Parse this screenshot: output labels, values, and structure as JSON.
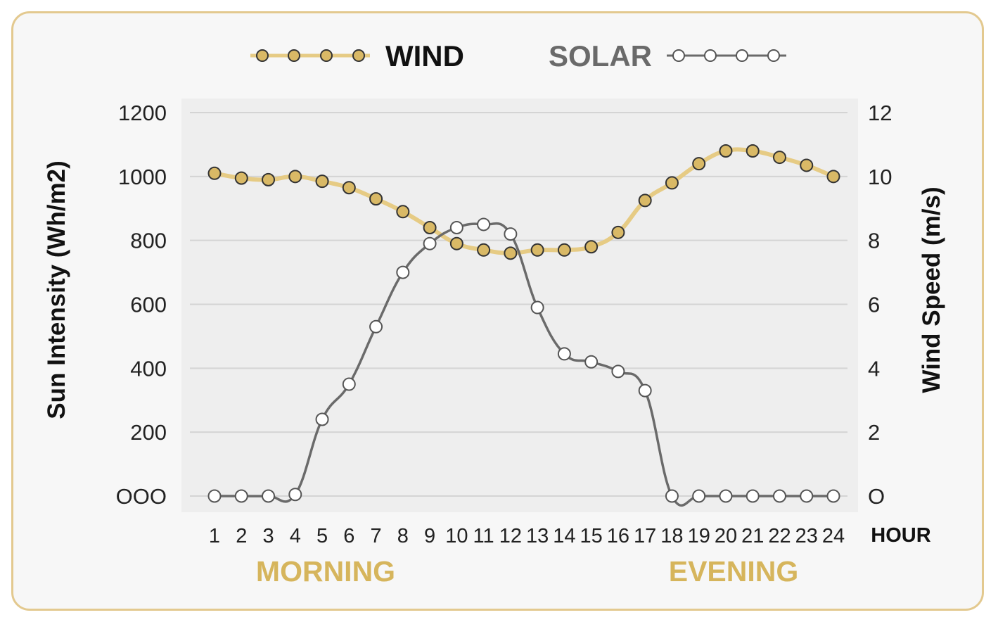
{
  "legend": {
    "wind_label": "WIND",
    "solar_label": "SOLAR"
  },
  "colors": {
    "wind": "#e6cb84",
    "wind_marker": "#d9b966",
    "solar": "#6a6a6a",
    "accent_text": "#d6b55c",
    "border": "#e3c98f"
  },
  "chart_data": {
    "type": "line",
    "x_unit_label": "HOUR",
    "period_labels": [
      "MORNING",
      "EVENING"
    ],
    "x": [
      1,
      2,
      3,
      4,
      5,
      6,
      7,
      8,
      9,
      10,
      11,
      12,
      13,
      14,
      15,
      16,
      17,
      18,
      19,
      20,
      21,
      22,
      23,
      24
    ],
    "x_tick_labels": [
      "1",
      "2",
      "3",
      "4",
      "5",
      "6",
      "7",
      "8",
      "9",
      "10",
      "11",
      "12",
      "13",
      "14",
      "15",
      "16",
      "17",
      "18",
      "19",
      "20",
      "21",
      "22",
      "23",
      "24"
    ],
    "left_axis": {
      "label": "Sun Intensity (Wh/m2)",
      "range": [
        0,
        1200
      ],
      "tick_labels": [
        "OOO",
        "200",
        "400",
        "600",
        "800",
        "1000",
        "1200"
      ],
      "tick_values": [
        0,
        200,
        400,
        600,
        800,
        1000,
        1200
      ]
    },
    "right_axis": {
      "label": "Wind Speed (m/s)",
      "range": [
        0,
        12
      ],
      "tick_labels": [
        "O",
        "2",
        "4",
        "6",
        "8",
        "10",
        "12"
      ],
      "tick_values": [
        0,
        2,
        4,
        6,
        8,
        10,
        12
      ]
    },
    "grid": true,
    "legend_position": "top",
    "series": [
      {
        "name": "WIND",
        "axis": "right",
        "values": [
          10.1,
          9.95,
          9.9,
          10.0,
          9.85,
          9.65,
          9.3,
          8.9,
          8.4,
          7.9,
          7.7,
          7.6,
          7.7,
          7.7,
          7.8,
          8.25,
          9.25,
          9.8,
          10.4,
          10.8,
          10.8,
          10.6,
          10.35,
          10.0
        ]
      },
      {
        "name": "SOLAR",
        "axis": "left",
        "values": [
          0,
          0,
          0,
          5,
          240,
          350,
          530,
          700,
          790,
          840,
          850,
          820,
          590,
          445,
          420,
          390,
          330,
          0,
          0,
          0,
          0,
          0,
          0,
          0
        ]
      }
    ]
  }
}
